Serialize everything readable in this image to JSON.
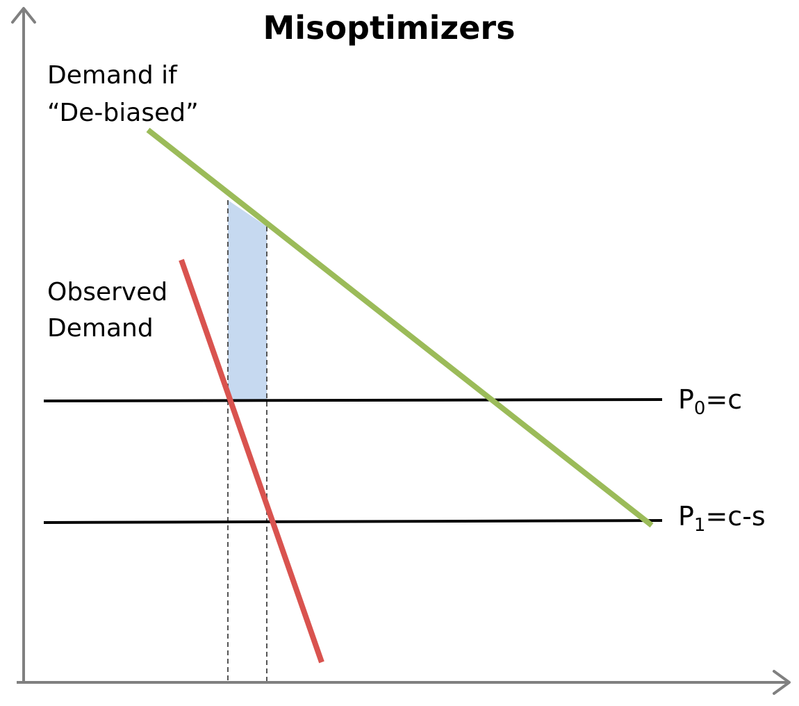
{
  "title": "Misoptimizers",
  "labels": {
    "debiased_line1": "Demand if",
    "debiased_line2": "“De-biased”",
    "observed_line1": "Observed",
    "observed_line2": "Demand"
  },
  "price_lines": {
    "p0": {
      "main": "P",
      "sub": "0",
      "rest": "=c"
    },
    "p1": {
      "main": "P",
      "sub": "1",
      "rest": "=c-s"
    }
  },
  "colors": {
    "debiased_demand": "#9bbb59",
    "observed_demand": "#d9534f",
    "shaded_area": "#c6d9f0",
    "axes": "#808080",
    "price_line": "#000000",
    "dashed": "#555555"
  }
}
